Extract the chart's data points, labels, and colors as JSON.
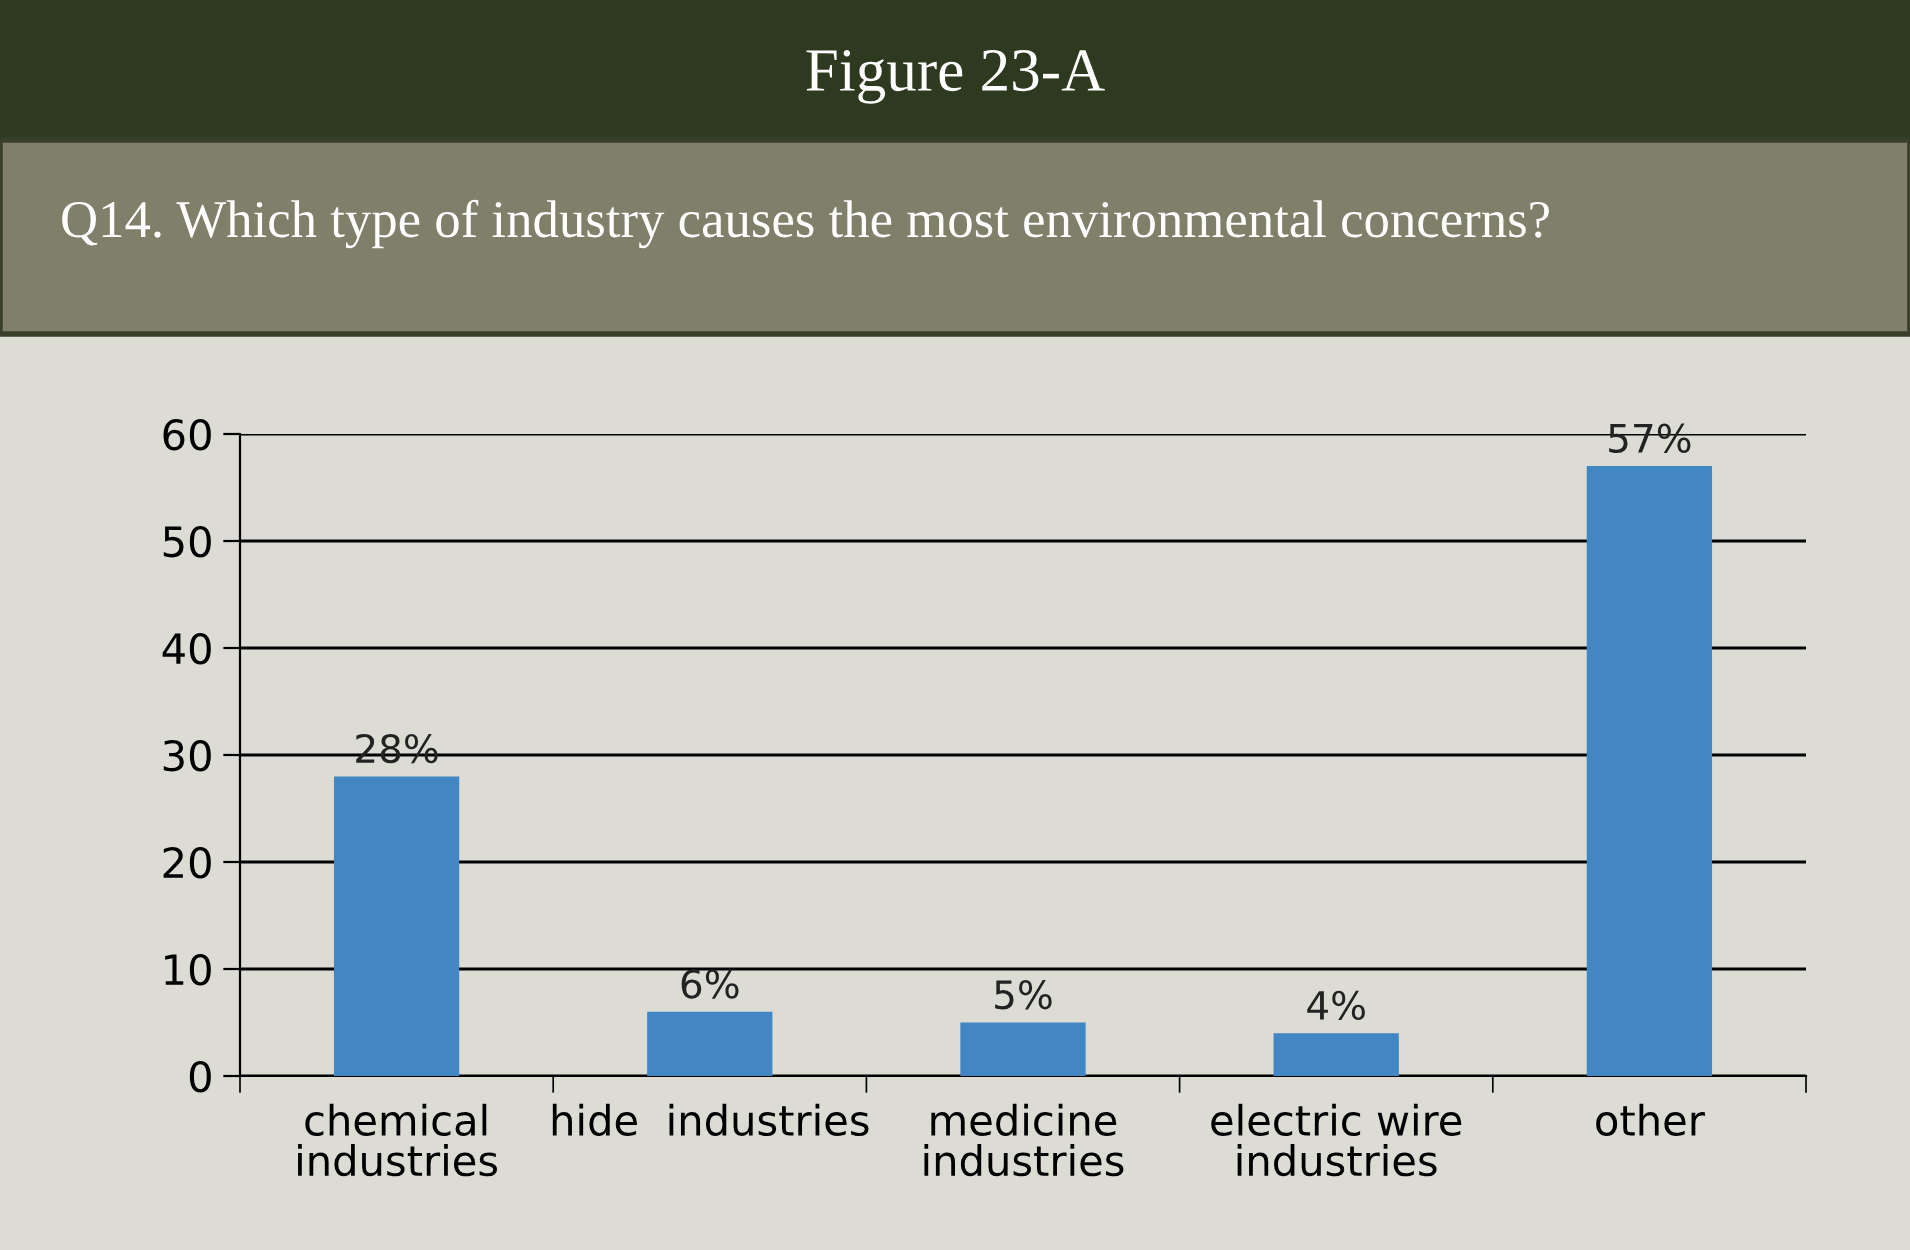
{
  "chart_data": {
    "type": "bar",
    "title": "Figure 23-A",
    "subtitle": "Q14. Which type of industry causes the most environmental concerns?",
    "categories": [
      "chemical\nindustries",
      "hide  industries",
      "medicine\nindustries",
      "electric wire\nindustries",
      "other"
    ],
    "values": [
      28,
      6,
      5,
      4,
      57
    ],
    "color": "#4286c4",
    "value_labels": [
      "28%",
      "6%",
      "5%",
      "4%",
      "57%"
    ],
    "ylim": [
      0,
      60
    ],
    "yticks": [
      0,
      10,
      20,
      30,
      40,
      50,
      60
    ],
    "grid": "y"
  }
}
